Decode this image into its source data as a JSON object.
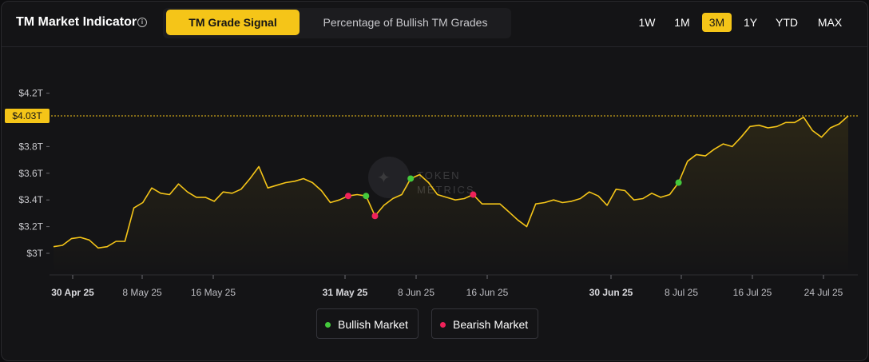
{
  "header": {
    "title": "TM Market Indicator",
    "tabs": [
      "TM Grade Signal",
      "Percentage of Bullish TM Grades"
    ],
    "active_tab": 0,
    "ranges": [
      "1W",
      "1M",
      "3M",
      "1Y",
      "YTD",
      "MAX"
    ],
    "active_range": 2
  },
  "colors": {
    "accent": "#f5c518",
    "bullish": "#44c93c",
    "bearish": "#f0225a",
    "line": "#f5c518"
  },
  "chart_data": {
    "type": "line",
    "y_unit": "trillion USD",
    "ylim": [
      2.9,
      4.35
    ],
    "y_ticks": [
      3.0,
      3.2,
      3.4,
      3.6,
      3.8,
      4.0,
      4.2
    ],
    "y_tick_labels": [
      "$3T",
      "$3.2T",
      "$3.4T",
      "$3.6T",
      "$3.8T",
      "",
      "$4.2T"
    ],
    "current_value_label": "$4.03T",
    "current_value": 4.03,
    "x_tick_labels": [
      "30 Apr 25",
      "8 May 25",
      "16 May 25",
      "31 May 25",
      "8 Jun 25",
      "16 Jun 25",
      "30 Jun 25",
      "8 Jul 25",
      "16 Jul 25",
      "24 Jul 25"
    ],
    "x_tick_bold": [
      true,
      false,
      false,
      true,
      false,
      false,
      true,
      false,
      false,
      false
    ],
    "series": [
      {
        "values": [
          3.05,
          3.06,
          3.11,
          3.12,
          3.1,
          3.04,
          3.05,
          3.09,
          3.09,
          3.34,
          3.38,
          3.49,
          3.45,
          3.44,
          3.52,
          3.46,
          3.42,
          3.42,
          3.39,
          3.46,
          3.45,
          3.48,
          3.56,
          3.65,
          3.49,
          3.51,
          3.53,
          3.54,
          3.56,
          3.53,
          3.47,
          3.38,
          3.4,
          3.43,
          3.44,
          3.43,
          3.28,
          3.36,
          3.41,
          3.44,
          3.56,
          3.59,
          3.53,
          3.44,
          3.42,
          3.4,
          3.41,
          3.44,
          3.37,
          3.37,
          3.37,
          3.31,
          3.25,
          3.2,
          3.37,
          3.38,
          3.4,
          3.38,
          3.39,
          3.41,
          3.46,
          3.43,
          3.36,
          3.48,
          3.47,
          3.4,
          3.41,
          3.45,
          3.42,
          3.44,
          3.53,
          3.69,
          3.74,
          3.73,
          3.78,
          3.82,
          3.8,
          3.87,
          3.95,
          3.96,
          3.94,
          3.95,
          3.98,
          3.98,
          4.02,
          3.92,
          3.87,
          3.94,
          3.97,
          4.03
        ]
      }
    ],
    "signals": [
      {
        "index": 33,
        "type": "bearish"
      },
      {
        "index": 35,
        "type": "bullish"
      },
      {
        "index": 36,
        "type": "bearish"
      },
      {
        "index": 40,
        "type": "bullish"
      },
      {
        "index": 47,
        "type": "bearish"
      },
      {
        "index": 70,
        "type": "bullish"
      }
    ],
    "legend": [
      "Bullish Market",
      "Bearish Market"
    ],
    "watermark": "TOKEN METRICS"
  }
}
